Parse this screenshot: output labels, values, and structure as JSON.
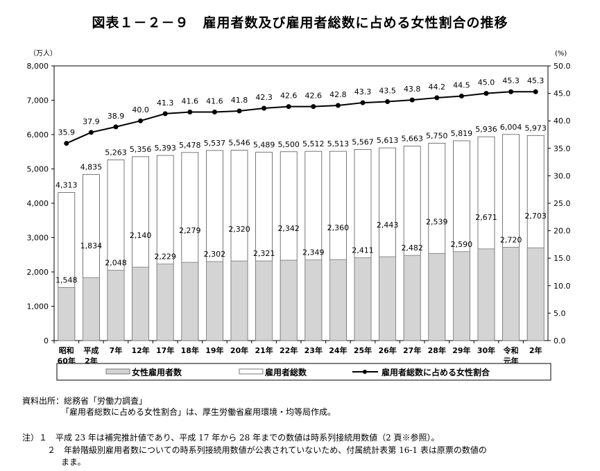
{
  "title": "図表１－２－９　雇用者数及び雇用者総数に占める女性割合の推移",
  "chart_data": {
    "type": "bar+line",
    "left_axis_unit": "（万人）",
    "right_axis_unit": "(%)",
    "left_ylim": [
      0,
      8000
    ],
    "left_ticks": [
      "0",
      "1,000",
      "2,000",
      "3,000",
      "4,000",
      "5,000",
      "6,000",
      "7,000",
      "8,000"
    ],
    "right_ylim": [
      0,
      50
    ],
    "right_ticks": [
      "0.0",
      "5.0",
      "10.0",
      "15.0",
      "20.0",
      "25.0",
      "30.0",
      "35.0",
      "40.0",
      "45.0",
      "50.0"
    ],
    "categories": [
      [
        "昭和",
        "60年"
      ],
      [
        "平成",
        "2年"
      ],
      [
        "7年"
      ],
      [
        "12年"
      ],
      [
        "17年"
      ],
      [
        "18年"
      ],
      [
        "19年"
      ],
      [
        "20年"
      ],
      [
        "21年"
      ],
      [
        "22年"
      ],
      [
        "23年"
      ],
      [
        "24年"
      ],
      [
        "25年"
      ],
      [
        "26年"
      ],
      [
        "27年"
      ],
      [
        "28年"
      ],
      [
        "29年"
      ],
      [
        "30年"
      ],
      [
        "令和",
        "元年"
      ],
      [
        "2年"
      ]
    ],
    "series": [
      {
        "name": "女性雇用者数",
        "type": "bar",
        "color": "#d4d4d4",
        "values": [
          1548,
          1834,
          2048,
          2140,
          2229,
          2279,
          2302,
          2320,
          2321,
          2342,
          2349,
          2360,
          2411,
          2443,
          2482,
          2539,
          2590,
          2671,
          2720,
          2703
        ]
      },
      {
        "name": "雇用者総数",
        "type": "bar",
        "color": "#ffffff",
        "values": [
          4313,
          4835,
          5263,
          5356,
          5393,
          5478,
          5537,
          5546,
          5489,
          5500,
          5512,
          5513,
          5567,
          5613,
          5663,
          5750,
          5819,
          5936,
          6004,
          5973
        ]
      },
      {
        "name": "雇用者総数に占める女性割合",
        "type": "line",
        "axis": "right",
        "color": "#000000",
        "values": [
          35.9,
          37.9,
          38.9,
          40.0,
          41.3,
          41.6,
          41.6,
          41.8,
          42.3,
          42.6,
          42.6,
          42.8,
          43.3,
          43.5,
          43.8,
          44.2,
          44.5,
          45.0,
          45.3,
          45.3
        ]
      }
    ],
    "legend_position": "bottom",
    "grid": false
  },
  "notes": {
    "source1": "資料出所：総務省「労働力調査」",
    "source2": "「雇用者総数に占める女性割合」は、厚生労働省雇用環境・均等局作成。",
    "note1": "注）１　平成 23 年は補完推計値であり、平成 17 年から 28 年までの数値は時系列接続用数値（2 頁※参照）。",
    "note2": "２　年齢階級別雇用者数についての時系列接続用数値が公表されていないため、付属統計表第 16-1 表は原票の数値の",
    "note3": "まま。"
  }
}
